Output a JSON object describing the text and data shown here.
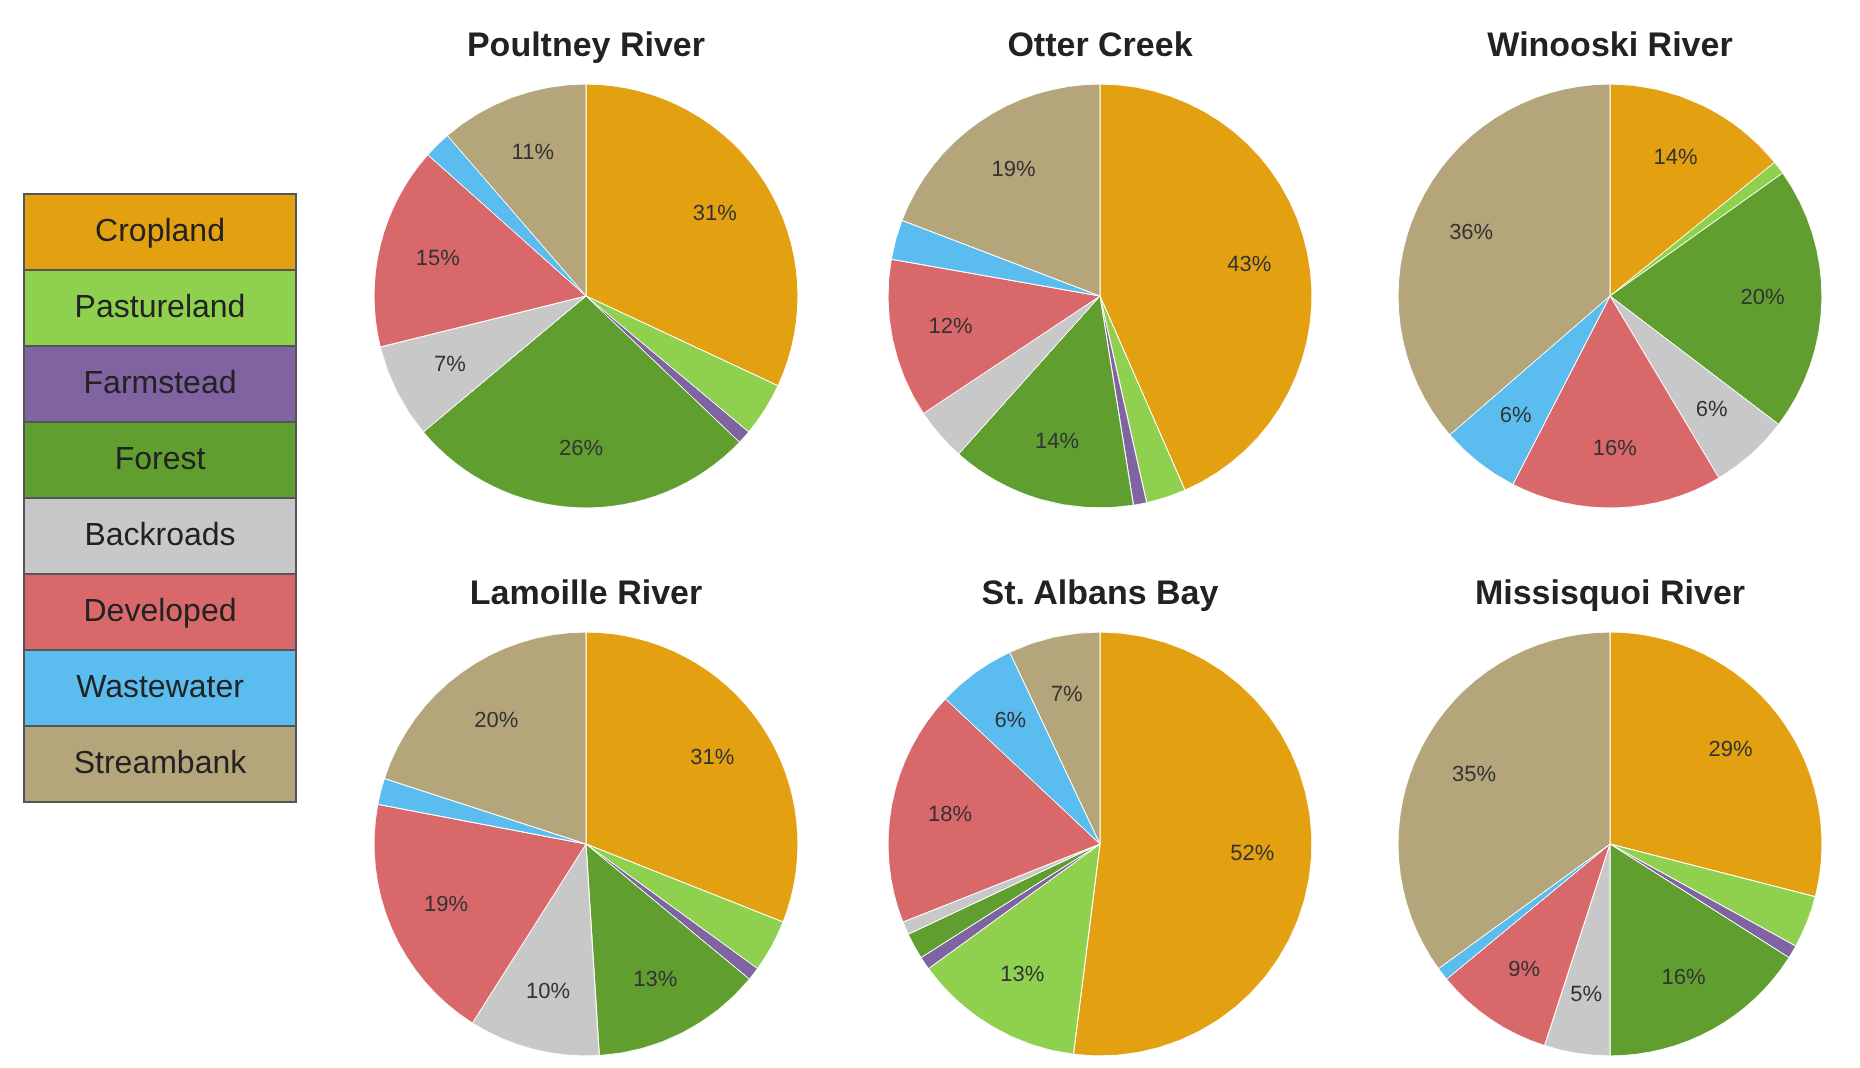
{
  "chart_data": [
    {
      "type": "pie",
      "title": "Poultney River",
      "legend": "left",
      "categories": [
        "Cropland",
        "Pastureland",
        "Farmstead",
        "Forest",
        "Backroads",
        "Developed",
        "Wastewater",
        "Streambank"
      ],
      "colors": [
        "#e3a010",
        "#8fd14f",
        "#8064a2",
        "#5f9e2f",
        "#c8c8c8",
        "#d9686b",
        "#5bbcf0",
        "#b4a57a"
      ],
      "values": [
        31,
        4,
        1,
        26,
        7,
        15,
        2,
        11
      ],
      "value_labels": [
        "31%",
        null,
        null,
        "26%",
        "7%",
        "15%",
        null,
        "11%"
      ]
    },
    {
      "type": "pie",
      "title": "Otter Creek",
      "categories": [
        null,
        null,
        null,
        null,
        null,
        null,
        null,
        null
      ],
      "colors": [
        "#e3a010",
        "#8fd14f",
        "#8064a2",
        "#5f9e2f",
        "#c8c8c8",
        "#d9686b",
        "#5bbcf0",
        "#b4a57a"
      ],
      "values": [
        43,
        3,
        1,
        14,
        4,
        12,
        3,
        19
      ],
      "value_labels": [
        "43%",
        null,
        null,
        "14%",
        null,
        "12%",
        null,
        "19%"
      ]
    },
    {
      "type": "pie",
      "title": "Winooski River",
      "categories": [
        null,
        null,
        null,
        null,
        null,
        null,
        null
      ],
      "colors": [
        "#e3a010",
        "#8fd14f",
        "#5f9e2f",
        "#c8c8c8",
        "#d9686b",
        "#5bbcf0",
        "#b4a57a"
      ],
      "values": [
        14,
        1,
        20,
        6,
        16,
        6,
        36
      ],
      "value_labels": [
        "14%",
        null,
        "20%",
        "6%",
        "16%",
        "6%",
        "36%"
      ]
    },
    {
      "type": "pie",
      "title": "Lamoille River",
      "categories": [
        null,
        null,
        null,
        null,
        null,
        null,
        null,
        null
      ],
      "colors": [
        "#e3a010",
        "#8fd14f",
        "#8064a2",
        "#5f9e2f",
        "#c8c8c8",
        "#d9686b",
        "#5bbcf0",
        "#b4a57a"
      ],
      "values": [
        31,
        4,
        1,
        13,
        10,
        19,
        2,
        20
      ],
      "value_labels": [
        "31%",
        null,
        null,
        "13%",
        "10%",
        "19%",
        null,
        "20%"
      ]
    },
    {
      "type": "pie",
      "title": "St. Albans Bay",
      "categories": [
        null,
        null,
        null,
        null,
        null,
        null,
        null,
        null
      ],
      "colors": [
        "#e3a010",
        "#8fd14f",
        "#8064a2",
        "#5f9e2f",
        "#c8c8c8",
        "#d9686b",
        "#5bbcf0",
        "#b4a57a"
      ],
      "values": [
        52,
        13,
        1,
        2,
        1,
        18,
        6,
        7
      ],
      "value_labels": [
        "52%",
        "13%",
        null,
        null,
        null,
        "18%",
        "6%",
        "7%"
      ]
    },
    {
      "type": "pie",
      "title": "Missisquoi River",
      "categories": [
        null,
        null,
        null,
        null,
        null,
        null,
        null,
        null
      ],
      "colors": [
        "#e3a010",
        "#8fd14f",
        "#8064a2",
        "#5f9e2f",
        "#c8c8c8",
        "#d9686b",
        "#5bbcf0",
        "#b4a57a"
      ],
      "values": [
        29,
        4,
        1,
        16,
        5,
        9,
        1,
        35
      ],
      "value_labels": [
        "29%",
        null,
        null,
        "16%",
        "5%",
        "9%",
        null,
        "35%"
      ]
    }
  ]
}
